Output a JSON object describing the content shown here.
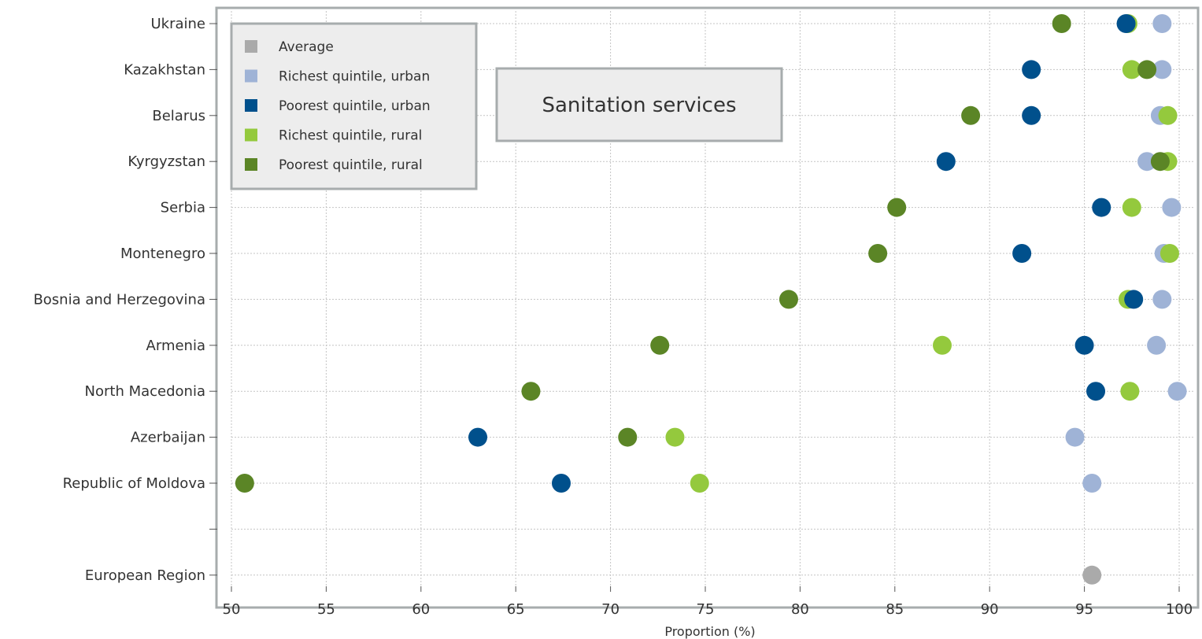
{
  "chart_data": {
    "type": "scatter",
    "title": "Sanitation services",
    "xlabel": "Proportion (%)",
    "ylabel": "",
    "xlim": [
      50,
      100
    ],
    "xticks": [
      "50",
      "55",
      "60",
      "65",
      "70",
      "75",
      "80",
      "85",
      "90",
      "95",
      "100"
    ],
    "grid": true,
    "legend_position": "top-left",
    "categories": [
      "Ukraine",
      "Kazakhstan",
      "Belarus",
      "Kyrgyzstan",
      "Serbia",
      "Montenegro",
      "Bosnia and Herzegovina",
      "Armenia",
      "North Macedonia",
      "Azerbaijan",
      "Republic of Moldova",
      "",
      "European Region"
    ],
    "series": [
      {
        "name": "Average",
        "color": "#aaaaaa",
        "values": [
          null,
          null,
          null,
          null,
          null,
          null,
          null,
          null,
          null,
          null,
          null,
          null,
          95.4
        ]
      },
      {
        "name": "Richest quintile, urban",
        "color": "#9fb3d6",
        "values": [
          99.1,
          99.1,
          99.0,
          98.3,
          99.6,
          99.2,
          99.1,
          98.8,
          99.9,
          94.5,
          95.4,
          null,
          null
        ]
      },
      {
        "name": "Poorest quintile, urban",
        "color": "#00508c",
        "values": [
          97.2,
          92.2,
          92.2,
          87.7,
          95.9,
          91.7,
          97.6,
          95.0,
          95.6,
          63.0,
          67.4,
          null,
          null
        ]
      },
      {
        "name": "Richest quintile, rural",
        "color": "#94c93d",
        "values": [
          97.3,
          97.5,
          99.4,
          99.4,
          97.5,
          99.5,
          97.3,
          87.5,
          97.4,
          73.4,
          74.7,
          null,
          null
        ]
      },
      {
        "name": "Poorest quintile, rural",
        "color": "#5b8526",
        "values": [
          93.8,
          98.3,
          89.0,
          99.0,
          85.1,
          84.1,
          79.4,
          72.6,
          65.8,
          70.9,
          50.7,
          null,
          null
        ]
      }
    ]
  }
}
